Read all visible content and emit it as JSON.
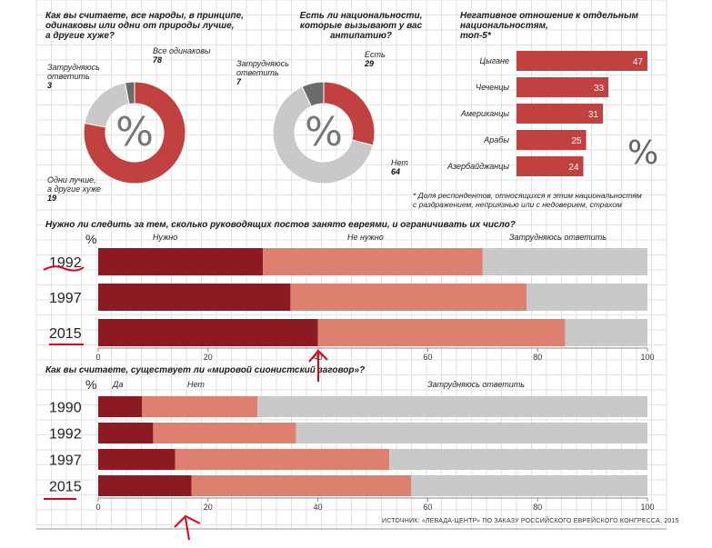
{
  "colors": {
    "dark_red": "#8b1a22",
    "mid_red": "#c0413f",
    "light_red": "#dd806f",
    "gray": "#c9c9c9",
    "dark_gray": "#6b6b6b",
    "annotation": "#e0001b"
  },
  "pie1": {
    "question": [
      "Как вы считаете, все народы, в принципе,",
      "одинаковы или одни от природы лучше,",
      "а другие хуже?"
    ],
    "labels": {
      "same": {
        "text": "Все одинаковы",
        "value": "78"
      },
      "unsure": {
        "text": [
          "Затрудняюсь",
          "ответить"
        ],
        "value": "3"
      },
      "better": {
        "text": [
          "Одни лучше,",
          "а другие хуже"
        ],
        "value": "19"
      }
    },
    "pct_symbol": "%"
  },
  "pie2": {
    "question": [
      "Есть ли национальности,",
      "которые вызывают у вас",
      "антипатию?"
    ],
    "labels": {
      "yes": {
        "text": "Есть",
        "value": "29"
      },
      "unsure": {
        "text": [
          "Затрудняюсь",
          "ответить"
        ],
        "value": "7"
      },
      "no": {
        "text": "Нет",
        "value": "64"
      }
    },
    "pct_symbol": "%"
  },
  "neg_title": [
    "Негативное отношение к отдельным",
    "национальностям,",
    "топ-5*"
  ],
  "footnote": [
    "* Доля респондентов, относящихся к этим национальностям",
    "с раздражением, неприязнью или с недоверием, страхом"
  ],
  "q3": "Нужно ли следить за тем, сколько руководящих постов занято евреями, и ограничивать их число?",
  "q4": "Как вы считаете, существует ли «мировой сионистский заговор»?",
  "pct_label": "%",
  "source": "ИСТОЧНИК: «ЛЕВАДА-ЦЕНТР» ПО ЗАКАЗУ РОССИЙСКОГО ЕВРЕЙСКОГО КОНГРЕССА, 2015",
  "chart_data": [
    {
      "type": "pie",
      "title": "Как вы считаете, все народы, в принципе, одинаковы или одни от природы лучше, а другие хуже?",
      "categories": [
        "Все одинаковы",
        "Одни лучше, а другие хуже",
        "Затрудняюсь ответить"
      ],
      "values": [
        78,
        19,
        3
      ]
    },
    {
      "type": "pie",
      "title": "Есть ли национальности, которые вызывают у вас антипатию?",
      "categories": [
        "Есть",
        "Нет",
        "Затрудняюсь ответить"
      ],
      "values": [
        29,
        64,
        7
      ]
    },
    {
      "type": "bar",
      "orientation": "horizontal",
      "title": "Негативное отношение к отдельным национальностям, топ-5*",
      "categories": [
        "Цыгане",
        "Чеченцы",
        "Американцы",
        "Арабы",
        "Азербайджанцы"
      ],
      "values": [
        47,
        33,
        31,
        25,
        24
      ],
      "unit": "%"
    },
    {
      "type": "bar",
      "stacked": true,
      "orientation": "horizontal",
      "title": "Нужно ли следить за тем, сколько руководящих постов занято евреями, и ограничивать их число?",
      "categories": [
        "1992",
        "1997",
        "2015"
      ],
      "series": [
        {
          "name": "Нужно",
          "values": [
            30,
            35,
            40
          ]
        },
        {
          "name": "Не нужно",
          "values": [
            40,
            43,
            45
          ]
        },
        {
          "name": "Затрудняюсь ответить",
          "values": [
            30,
            22,
            15
          ]
        }
      ],
      "xlim": [
        0,
        100
      ],
      "xticks": [
        "0",
        "20",
        "40",
        "60",
        "80",
        "100"
      ]
    },
    {
      "type": "bar",
      "stacked": true,
      "orientation": "horizontal",
      "title": "Как вы считаете, существует ли «мировой сионистский заговор»?",
      "categories": [
        "1990",
        "1992",
        "1997",
        "2015"
      ],
      "series": [
        {
          "name": "Да",
          "values": [
            8,
            10,
            14,
            17
          ]
        },
        {
          "name": "Нет",
          "values": [
            21,
            26,
            39,
            40
          ]
        },
        {
          "name": "Затрудняюсь ответить",
          "values": [
            71,
            64,
            47,
            43
          ]
        }
      ],
      "xlim": [
        0,
        100
      ],
      "xticks": [
        "0",
        "20",
        "40",
        "60",
        "80",
        "100"
      ]
    }
  ]
}
